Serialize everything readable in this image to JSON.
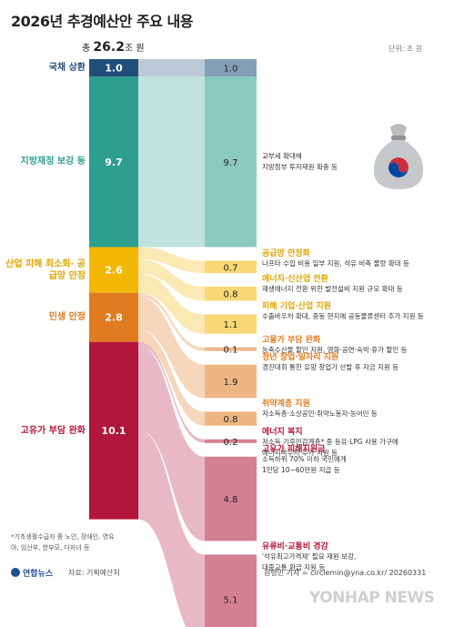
{
  "header": {
    "title": "2026년 추경예산안 주요 내용",
    "total_prefix": "총",
    "total_value": "26.2",
    "total_unit": "조 원",
    "unit_label": "단위: 조 원"
  },
  "footer": {
    "footnote": "*기초생활수급자 중 노인, 장애인, 영유아, 임산부, 한부모, 다자녀 등",
    "logo_text": "연합뉴스",
    "source": "자료: 기획예산처",
    "credit": "원형민 기자 = circlemin@yna.co.kr/ 20260331",
    "agency_watermark": "YONHAP NEWS"
  },
  "icon": {
    "money_bag": "money-bag-icon"
  },
  "chart_data": {
    "type": "sankey",
    "title": "2026년 추경예산안 주요 내용",
    "total": 26.2,
    "unit": "조 원",
    "categories": [
      {
        "name": "국채 상환",
        "value": 1.0,
        "value_label": "1.0",
        "color": "#1f4e79",
        "text_color": "#1f4e79"
      },
      {
        "name": "지방재정 보강 등",
        "value": 9.7,
        "value_label": "9.7",
        "color": "#2e9e8f",
        "text_color": "#2e9e8f"
      },
      {
        "name": "산업 피해 최소화· 공급망 안정",
        "value": 2.6,
        "value_label": "2.6",
        "color": "#f2b705",
        "text_color": "#e0a500"
      },
      {
        "name": "민생 안정",
        "value": 2.8,
        "value_label": "2.8",
        "color": "#e07b1f",
        "text_color": "#e07b1f"
      },
      {
        "name": "고유가 부담 완화",
        "value": 10.1,
        "value_label": "10.1",
        "color": "#b3163c",
        "text_color": "#b3163c"
      }
    ],
    "items": [
      {
        "category": 0,
        "value": 1.0,
        "value_label": "1.0",
        "title": "",
        "desc": []
      },
      {
        "category": 1,
        "value": 9.7,
        "value_label": "9.7",
        "title": "",
        "desc": [
          "교부세 확대해",
          "지방정부 투자재원 확충 등"
        ]
      },
      {
        "category": 2,
        "value": 0.7,
        "value_label": "0.7",
        "title": "공급망 안정화",
        "desc": [
          "나프타 수입 비용 일부 지원, 석유 비축 물량 확대 등"
        ]
      },
      {
        "category": 2,
        "value": 0.8,
        "value_label": "0.8",
        "title": "에너지·신산업 전환",
        "desc": [
          "재생에너지 전환 위한 발전설비 지원 규모 확대 등"
        ]
      },
      {
        "category": 2,
        "value": 1.1,
        "value_label": "1.1",
        "title": "피해 기업·산업 지원",
        "desc": [
          "수출바우처 확대, 중동 현지에 공동물류센터 추가 지원 등"
        ]
      },
      {
        "category": 3,
        "value": 0.1,
        "value_label": "0.1",
        "title": "고물가 부담 완화",
        "desc": [
          "농축수산물 할인 지원, 영화·공연·숙박·휴가 할인 등"
        ]
      },
      {
        "category": 3,
        "value": 1.9,
        "value_label": "1.9",
        "title": "청년 창업·일자리 지원",
        "desc": [
          "경진대회 통한 유망 창업가 선발 후 자금 지원 등"
        ]
      },
      {
        "category": 3,
        "value": 0.8,
        "value_label": "0.8",
        "title": "취약계층 지원",
        "desc": [
          "저소득층·소상공인·취약노동자·농어민 등"
        ]
      },
      {
        "category": 4,
        "value": 0.2,
        "value_label": "0.2",
        "title": "에너지 복지",
        "desc": [
          "저소득 기후민감계층* 중 등유·LPG 사용 가구에",
          "에너지바우처 추가 지원 등"
        ]
      },
      {
        "category": 4,
        "value": 4.8,
        "value_label": "4.8",
        "title": "고유가 피해지원금",
        "desc": [
          "소득하위 70% 이하 국민에게",
          "1인당 10~60만원 지급 등"
        ]
      },
      {
        "category": 4,
        "value": 5.1,
        "value_label": "5.1",
        "title": "유류비·교통비 경감",
        "desc": [
          "'석유최고가격제' 필요 재원 보강,",
          "대중교통 환급 지원 등"
        ]
      }
    ]
  }
}
